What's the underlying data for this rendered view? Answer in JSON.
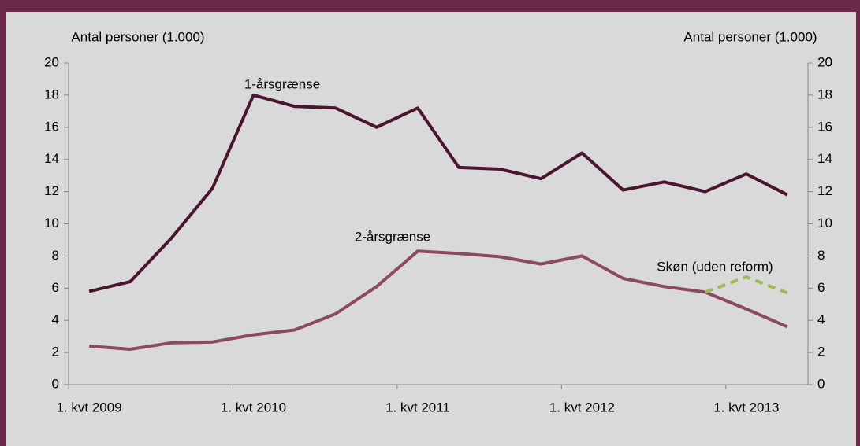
{
  "chart_data": {
    "type": "line",
    "ylabel": "Antal personer (1.000)",
    "y2label": "Antal personer (1.000)",
    "categories": [
      "1. kvt 2009",
      null,
      null,
      null,
      "1. kvt 2010",
      null,
      null,
      null,
      "1. kvt 2011",
      null,
      null,
      null,
      "1. kvt 2012",
      null,
      null,
      null,
      "1. kvt 2013",
      null
    ],
    "series": [
      {
        "name": "1-årsgrænse",
        "color": "#4a1530",
        "dashed": false,
        "values": [
          5.8,
          6.4,
          9.1,
          12.2,
          18.0,
          17.3,
          17.2,
          16.0,
          17.2,
          13.5,
          13.4,
          12.8,
          14.4,
          12.1,
          12.6,
          12.0,
          13.1,
          11.8
        ]
      },
      {
        "name": "2-årsgrænse",
        "color": "#8b4a62",
        "dashed": false,
        "values": [
          2.4,
          2.2,
          2.6,
          2.65,
          3.1,
          3.4,
          4.4,
          6.1,
          8.3,
          8.15,
          7.95,
          7.5,
          8.0,
          6.6,
          6.1,
          5.75,
          4.7,
          3.6
        ]
      },
      {
        "name": "Skøn (uden reform)",
        "color": "#9bbb59",
        "dashed": true,
        "values": [
          null,
          null,
          null,
          null,
          null,
          null,
          null,
          null,
          null,
          null,
          null,
          null,
          null,
          null,
          null,
          5.75,
          6.7,
          5.7
        ]
      }
    ],
    "ylim": [
      0,
      20
    ],
    "yticks": [
      0,
      2,
      4,
      6,
      8,
      10,
      12,
      14,
      16,
      18,
      20
    ],
    "y2lim": [
      0,
      20
    ],
    "y2ticks": [
      0,
      2,
      4,
      6,
      8,
      10,
      12,
      14,
      16,
      18,
      20
    ],
    "grid": false
  }
}
